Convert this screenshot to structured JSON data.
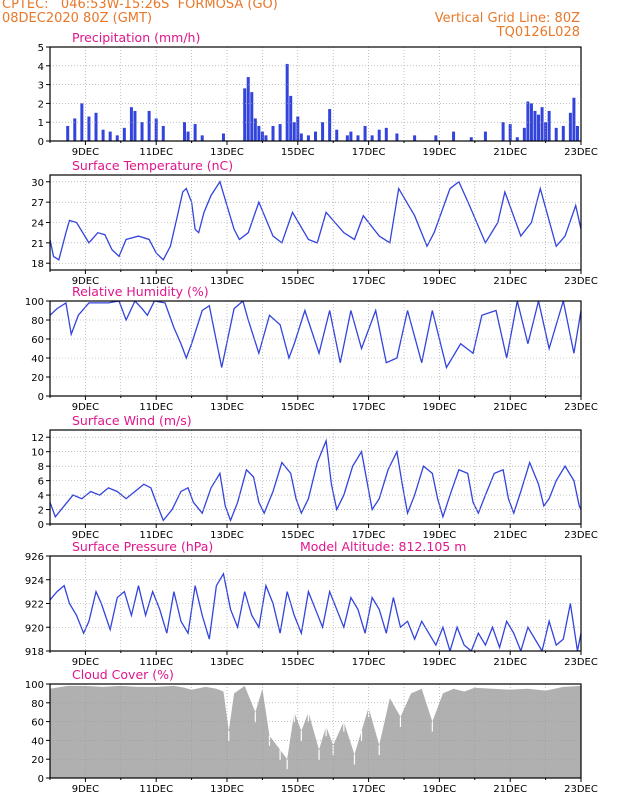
{
  "header": {
    "line1_left": "CPTEC:   046:53W-15:26S  FORMOSA (GO)",
    "line2_left": "08DEC2020 80Z (GMT)",
    "line2_right": "Vertical Grid Line: 80Z",
    "line3_right": "TQ0126L028"
  },
  "colors": {
    "line": "#3344dd",
    "title": "#e0168c",
    "header": "#e8782a",
    "cloud": "#b0b0b0",
    "grid": "#999999"
  },
  "x_ticks": [
    "9DEC",
    "11DEC",
    "13DEC",
    "15DEC",
    "17DEC",
    "19DEC",
    "21DEC",
    "23DEC"
  ],
  "chart_data": [
    {
      "type": "bar",
      "title": "Precipitation (mm/h)",
      "ylim": [
        0,
        5
      ],
      "yticks": [
        0,
        1,
        2,
        3,
        4,
        5
      ],
      "x_range_days": [
        8.0,
        23.0
      ],
      "x": [
        8.5,
        8.7,
        8.9,
        9.1,
        9.3,
        9.5,
        9.7,
        9.9,
        10.1,
        10.3,
        10.4,
        10.6,
        10.8,
        11.0,
        11.2,
        11.8,
        11.9,
        12.1,
        12.3,
        12.9,
        13.5,
        13.6,
        13.7,
        13.8,
        13.9,
        14.0,
        14.1,
        14.3,
        14.5,
        14.7,
        14.8,
        14.9,
        15.0,
        15.1,
        15.3,
        15.5,
        15.7,
        15.9,
        16.1,
        16.4,
        16.5,
        16.7,
        16.9,
        17.1,
        17.3,
        17.5,
        17.8,
        18.3,
        18.9,
        19.4,
        19.9,
        20.3,
        20.8,
        21.0,
        21.2,
        21.4,
        21.5,
        21.6,
        21.7,
        21.8,
        21.9,
        22.0,
        22.1,
        22.3,
        22.5,
        22.7,
        22.8,
        22.9
      ],
      "values": [
        0.8,
        1.2,
        2.0,
        1.3,
        1.5,
        0.6,
        0.5,
        0.3,
        0.7,
        1.8,
        1.6,
        1.0,
        1.6,
        1.2,
        0.8,
        1.0,
        0.5,
        0.9,
        0.3,
        0.4,
        2.8,
        3.4,
        2.6,
        1.2,
        0.8,
        0.5,
        0.3,
        0.8,
        0.9,
        4.1,
        2.4,
        1.0,
        1.3,
        0.4,
        0.3,
        0.5,
        1.0,
        1.7,
        0.6,
        0.3,
        0.5,
        0.3,
        0.8,
        0.3,
        0.6,
        0.7,
        0.4,
        0.3,
        0.3,
        0.5,
        0.2,
        0.5,
        1.0,
        0.9,
        0.2,
        0.7,
        2.1,
        2.0,
        1.6,
        1.4,
        1.8,
        1.0,
        1.6,
        0.7,
        0.8,
        1.5,
        2.3,
        0.8
      ]
    },
    {
      "type": "line",
      "title": "Surface Temperature (nC)",
      "ylim": [
        17,
        31
      ],
      "yticks": [
        18,
        21,
        24,
        27,
        30
      ],
      "x_range_days": [
        8.0,
        23.0
      ],
      "x": [
        8.0,
        8.1,
        8.25,
        8.45,
        8.55,
        8.75,
        9.1,
        9.35,
        9.55,
        9.75,
        9.95,
        10.15,
        10.5,
        10.8,
        11.0,
        11.2,
        11.4,
        11.6,
        11.75,
        11.85,
        12.0,
        12.1,
        12.2,
        12.35,
        12.55,
        12.8,
        13.2,
        13.35,
        13.6,
        13.9,
        14.3,
        14.55,
        14.85,
        15.3,
        15.55,
        15.8,
        16.3,
        16.6,
        16.85,
        17.3,
        17.6,
        17.85,
        18.3,
        18.65,
        18.85,
        19.3,
        19.55,
        19.85,
        20.3,
        20.65,
        20.85,
        21.3,
        21.6,
        21.85,
        22.3,
        22.55,
        22.85,
        23.0
      ],
      "values": [
        21.5,
        19.0,
        18.5,
        22.5,
        24.3,
        24.0,
        21.0,
        22.5,
        22.2,
        20.0,
        19.0,
        21.5,
        22.0,
        21.5,
        19.5,
        18.5,
        20.5,
        25.0,
        28.5,
        29.0,
        27.0,
        23.0,
        22.5,
        25.5,
        28.0,
        30.0,
        23.0,
        21.5,
        22.5,
        27.0,
        22.0,
        21.0,
        25.5,
        21.5,
        21.0,
        25.5,
        22.5,
        21.5,
        25.0,
        22.0,
        21.0,
        29.0,
        25.0,
        20.5,
        22.5,
        29.0,
        30.0,
        26.5,
        21.0,
        24.0,
        28.5,
        22.0,
        24.0,
        29.0,
        20.5,
        22.0,
        26.5,
        23.0
      ]
    },
    {
      "type": "line",
      "title": "Relative Humidity (%)",
      "ylim": [
        0,
        100
      ],
      "yticks": [
        0,
        20,
        40,
        60,
        80,
        100
      ],
      "x_range_days": [
        8.0,
        23.0
      ],
      "x": [
        8.0,
        8.2,
        8.45,
        8.6,
        8.8,
        9.1,
        9.4,
        9.65,
        9.95,
        10.15,
        10.4,
        10.6,
        10.75,
        10.95,
        11.25,
        11.5,
        11.7,
        11.85,
        12.0,
        12.3,
        12.5,
        12.85,
        13.2,
        13.45,
        13.6,
        13.9,
        14.2,
        14.5,
        14.75,
        14.9,
        15.2,
        15.6,
        15.9,
        16.2,
        16.5,
        16.8,
        17.2,
        17.5,
        17.8,
        18.1,
        18.5,
        18.8,
        19.2,
        19.6,
        19.95,
        20.2,
        20.6,
        20.9,
        21.2,
        21.5,
        21.8,
        22.1,
        22.5,
        22.8,
        23.0
      ],
      "values": [
        85,
        92,
        98,
        65,
        85,
        98,
        98,
        98,
        100,
        80,
        100,
        92,
        85,
        100,
        98,
        72,
        55,
        40,
        55,
        90,
        95,
        30,
        92,
        100,
        80,
        45,
        85,
        75,
        40,
        55,
        90,
        45,
        90,
        35,
        90,
        50,
        90,
        35,
        40,
        90,
        35,
        90,
        30,
        55,
        45,
        85,
        90,
        40,
        100,
        55,
        100,
        50,
        100,
        45,
        90
      ]
    },
    {
      "type": "line",
      "title": "Surface Wind (m/s)",
      "ylim": [
        0,
        13
      ],
      "yticks": [
        0,
        2,
        4,
        6,
        8,
        10,
        12
      ],
      "x_range_days": [
        8.0,
        23.0
      ],
      "x": [
        8.0,
        8.15,
        8.4,
        8.65,
        8.9,
        9.15,
        9.4,
        9.65,
        9.9,
        10.15,
        10.4,
        10.65,
        10.85,
        11.0,
        11.2,
        11.45,
        11.7,
        11.9,
        12.05,
        12.3,
        12.55,
        12.8,
        12.95,
        13.1,
        13.3,
        13.55,
        13.75,
        13.9,
        14.05,
        14.3,
        14.55,
        14.8,
        14.95,
        15.1,
        15.3,
        15.55,
        15.8,
        15.95,
        16.1,
        16.3,
        16.55,
        16.8,
        16.95,
        17.1,
        17.3,
        17.55,
        17.8,
        17.95,
        18.1,
        18.3,
        18.55,
        18.8,
        18.95,
        19.1,
        19.3,
        19.55,
        19.8,
        19.95,
        20.1,
        20.3,
        20.55,
        20.8,
        20.95,
        21.1,
        21.3,
        21.55,
        21.8,
        21.95,
        22.1,
        22.3,
        22.55,
        22.8,
        22.95,
        23.0
      ],
      "values": [
        3.0,
        1.0,
        2.5,
        4.0,
        3.5,
        4.5,
        4.0,
        5.0,
        4.5,
        3.5,
        4.5,
        5.5,
        5.0,
        3.0,
        0.5,
        2.0,
        4.5,
        5.0,
        3.0,
        1.5,
        5.0,
        7.0,
        2.5,
        0.5,
        3.0,
        7.5,
        6.5,
        3.0,
        1.5,
        4.5,
        8.5,
        7.0,
        3.5,
        1.5,
        3.5,
        8.5,
        11.5,
        5.5,
        2.0,
        4.0,
        8.0,
        10.0,
        6.0,
        2.0,
        3.5,
        7.5,
        10.0,
        5.5,
        1.5,
        4.0,
        8.0,
        7.0,
        3.5,
        1.0,
        4.0,
        7.5,
        7.0,
        3.0,
        1.5,
        4.0,
        7.0,
        7.5,
        3.5,
        1.5,
        4.5,
        8.5,
        5.5,
        2.5,
        3.5,
        6.0,
        8.0,
        6.0,
        2.5,
        2.0
      ]
    },
    {
      "type": "line",
      "title": "Surface Pressure (hPa)",
      "annotation": "Model Altitude: 812.105 m",
      "ylim": [
        918,
        926
      ],
      "yticks": [
        918,
        920,
        922,
        924,
        926
      ],
      "x_range_days": [
        8.0,
        23.0
      ],
      "x": [
        8.0,
        8.2,
        8.4,
        8.55,
        8.75,
        8.95,
        9.1,
        9.3,
        9.45,
        9.7,
        9.9,
        10.1,
        10.3,
        10.5,
        10.7,
        10.9,
        11.1,
        11.3,
        11.5,
        11.7,
        11.9,
        12.1,
        12.3,
        12.5,
        12.7,
        12.9,
        13.1,
        13.3,
        13.5,
        13.7,
        13.9,
        14.1,
        14.3,
        14.5,
        14.7,
        14.9,
        15.1,
        15.3,
        15.5,
        15.7,
        15.9,
        16.1,
        16.3,
        16.5,
        16.7,
        16.9,
        17.1,
        17.3,
        17.5,
        17.7,
        17.9,
        18.1,
        18.3,
        18.5,
        18.7,
        18.9,
        19.1,
        19.3,
        19.5,
        19.7,
        19.9,
        20.1,
        20.3,
        20.5,
        20.7,
        20.9,
        21.1,
        21.3,
        21.5,
        21.7,
        21.9,
        22.1,
        22.3,
        22.5,
        22.7,
        22.9,
        23.0
      ],
      "values": [
        922.3,
        923.0,
        923.5,
        922.0,
        921.0,
        919.5,
        920.5,
        923.0,
        922.0,
        919.8,
        922.5,
        923.0,
        921.0,
        923.5,
        921.0,
        923.0,
        921.5,
        919.5,
        923.0,
        920.5,
        919.5,
        923.5,
        921.0,
        919.0,
        923.5,
        924.5,
        921.5,
        920.0,
        923.0,
        921.0,
        920.0,
        923.5,
        922.0,
        919.5,
        923.0,
        921.0,
        919.5,
        923.0,
        921.5,
        920.0,
        923.0,
        921.5,
        920.0,
        922.5,
        921.5,
        919.5,
        922.5,
        921.5,
        919.5,
        922.5,
        920.0,
        920.5,
        919.0,
        920.5,
        919.5,
        918.5,
        920.0,
        918.0,
        920.0,
        918.5,
        918.0,
        919.5,
        918.5,
        920.0,
        918.3,
        920.5,
        919.5,
        918.0,
        920.0,
        919.0,
        918.0,
        920.5,
        918.5,
        919.0,
        922.0,
        918.0,
        919.5
      ]
    },
    {
      "type": "area",
      "title": "Cloud Cover (%)",
      "ylim": [
        0,
        100
      ],
      "yticks": [
        0,
        20,
        40,
        60,
        80,
        100
      ],
      "x_range_days": [
        8.0,
        23.0
      ],
      "x": [
        8.0,
        8.5,
        9.0,
        9.5,
        10.0,
        10.5,
        11.0,
        11.5,
        11.8,
        12.0,
        12.4,
        12.7,
        12.9,
        13.05,
        13.2,
        13.5,
        13.8,
        14.0,
        14.2,
        14.5,
        14.7,
        14.9,
        15.1,
        15.3,
        15.6,
        15.8,
        16.0,
        16.3,
        16.6,
        16.8,
        17.0,
        17.3,
        17.6,
        17.9,
        18.2,
        18.5,
        18.8,
        19.1,
        19.4,
        19.7,
        20.0,
        20.5,
        21.0,
        21.5,
        22.0,
        22.5,
        23.0
      ],
      "values": [
        95,
        98,
        98,
        97,
        98,
        97,
        97,
        98,
        96,
        94,
        97,
        95,
        92,
        50,
        90,
        98,
        70,
        95,
        45,
        30,
        20,
        70,
        50,
        70,
        30,
        55,
        35,
        60,
        25,
        50,
        75,
        35,
        85,
        65,
        90,
        95,
        60,
        90,
        95,
        92,
        96,
        95,
        94,
        95,
        93,
        97,
        98
      ]
    }
  ]
}
